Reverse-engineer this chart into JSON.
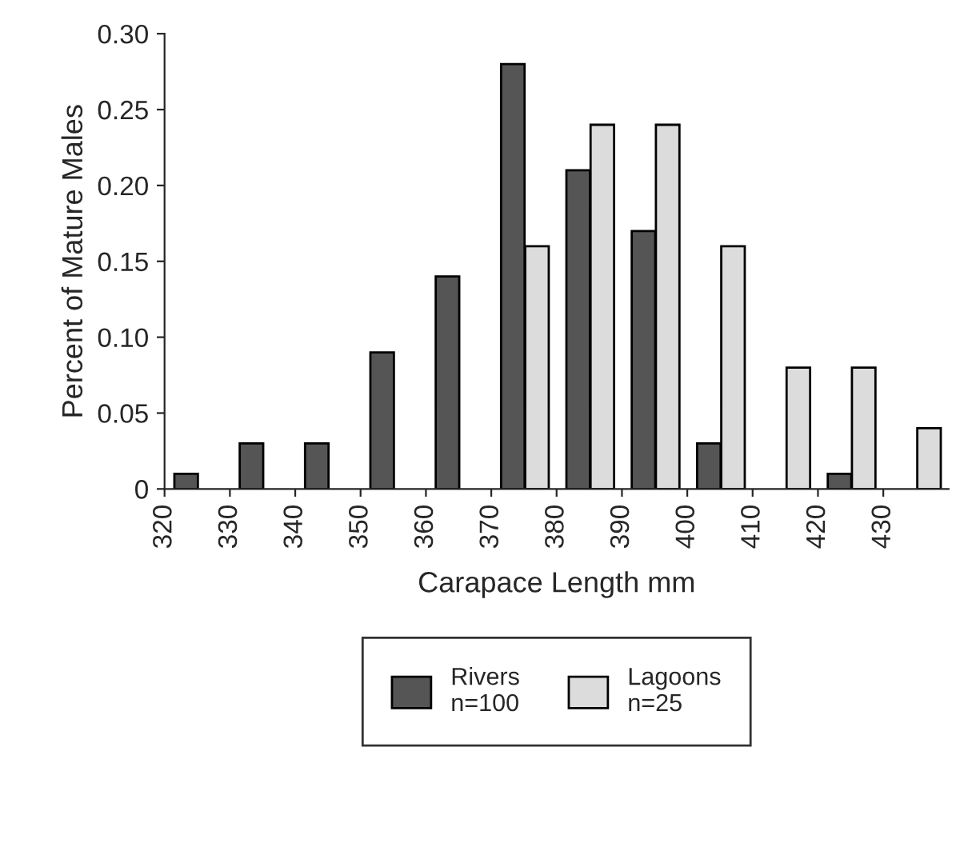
{
  "chart_data": {
    "type": "bar",
    "xlabel": "Carapace Length mm",
    "ylabel": "Percent of Mature Males",
    "xlim": [
      320,
      440
    ],
    "xticks": [
      320,
      330,
      340,
      350,
      360,
      370,
      380,
      390,
      400,
      410,
      420,
      430
    ],
    "ylim": [
      0,
      0.3
    ],
    "yticks": [
      {
        "value": 0,
        "label": "0"
      },
      {
        "value": 0.05,
        "label": "0.05"
      },
      {
        "value": 0.1,
        "label": "0.10"
      },
      {
        "value": 0.15,
        "label": "0.15"
      },
      {
        "value": 0.2,
        "label": "0.20"
      },
      {
        "value": 0.25,
        "label": "0.25"
      },
      {
        "value": 0.3,
        "label": "0.30"
      }
    ],
    "grid": false,
    "legend": "bottom",
    "series": [
      {
        "name": "Rivers\nn=100",
        "color": "#555555",
        "x": [
          323.3,
          333.3,
          343.3,
          353.3,
          363.3,
          373.3,
          383.3,
          393.3,
          403.3,
          423.3
        ],
        "values": [
          0.01,
          0.03,
          0.03,
          0.09,
          0.14,
          0.28,
          0.21,
          0.17,
          0.03,
          0.01
        ]
      },
      {
        "name": "Lagoons\nn=25",
        "color": "#dcdcdc",
        "x": [
          377,
          387,
          397,
          407,
          417,
          427,
          437
        ],
        "values": [
          0.16,
          0.24,
          0.24,
          0.16,
          0.08,
          0.08,
          0.04
        ]
      }
    ]
  }
}
